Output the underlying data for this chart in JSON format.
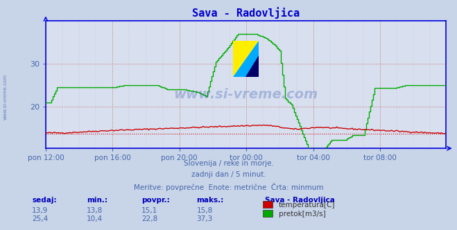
{
  "title": "Sava - Radovljica",
  "title_color": "#0000cc",
  "bg_color": "#c8d4e8",
  "plot_bg_color": "#d8e0f0",
  "grid_color": "#cc8888",
  "axis_color": "#0000dd",
  "xlabel_color": "#4466aa",
  "ylabel_color": "#4466aa",
  "subtitle_lines": [
    "Slovenija / reke in morje.",
    "zadnji dan / 5 minut.",
    "Meritve: povprečne  Enote: metrične  Črta: minmum"
  ],
  "legend_title": "Sava - Radovljica",
  "legend_entries": [
    {
      "label": "temperatura[C]",
      "color": "#cc0000"
    },
    {
      "label": "pretok[m3/s]",
      "color": "#00aa00"
    }
  ],
  "table_headers": [
    "sedaj:",
    "min.:",
    "povpr.:",
    "maks.:"
  ],
  "table_rows": [
    [
      "13,9",
      "13,8",
      "15,1",
      "15,8"
    ],
    [
      "25,4",
      "10,4",
      "22,8",
      "37,3"
    ]
  ],
  "xticklabels": [
    "pon 12:00",
    "pon 16:00",
    "pon 20:00",
    "tor 00:00",
    "tor 04:00",
    "tor 08:00"
  ],
  "yticks": [
    20,
    30
  ],
  "ylim_min": 10.4,
  "ylim_max": 40,
  "xlim_min": 0,
  "xlim_max": 287,
  "watermark": "www.si-vreme.com",
  "watermark_color": "#3355aa",
  "watermark_alpha": 0.3,
  "temp_color": "#cc0000",
  "flow_color": "#00aa00",
  "minline_color": "#cc0000",
  "minline_value": 13.8,
  "left_text": "www.si-vreme.com"
}
